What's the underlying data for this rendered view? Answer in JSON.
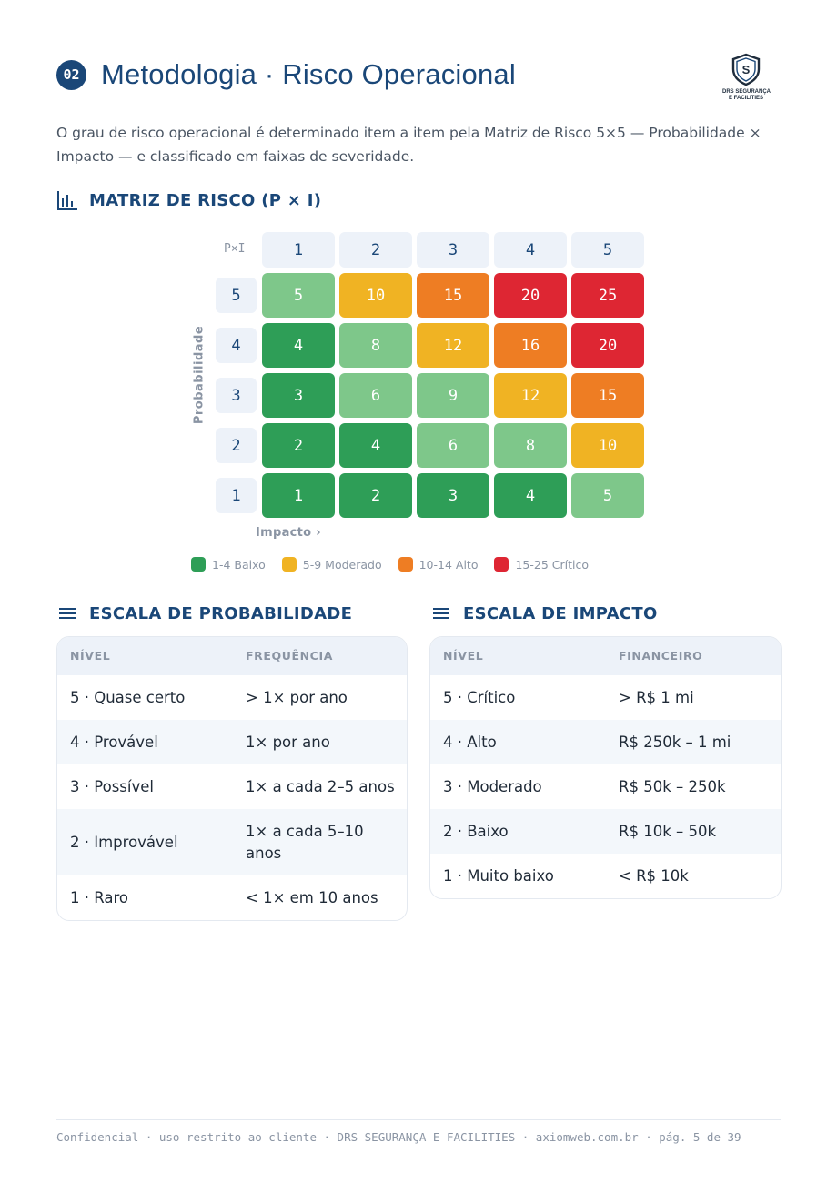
{
  "header": {
    "section_number": "02",
    "title": "Metodologia · Risco Operacional",
    "logo": {
      "name": "drs-shield-logo",
      "line1": "DRS SEGURANÇA",
      "line2": "E FACILITIES"
    }
  },
  "intro": "O grau de risco operacional é determinado item a item pela Matriz de Risco 5×5 — Probabilidade × Impacto — e classificado em faixas de severidade.",
  "matrix": {
    "heading": "MATRIZ DE RISCO (P × I)",
    "icon": "bar-chart-icon",
    "corner_label": "P×I",
    "column_headers": [
      "1",
      "2",
      "3",
      "4",
      "5"
    ],
    "row_headers": [
      "5",
      "4",
      "3",
      "2",
      "1"
    ],
    "rows": [
      [
        "5",
        "10",
        "15",
        "20",
        "25"
      ],
      [
        "4",
        "8",
        "12",
        "16",
        "20"
      ],
      [
        "3",
        "6",
        "9",
        "12",
        "15"
      ],
      [
        "2",
        "4",
        "6",
        "8",
        "10"
      ],
      [
        "1",
        "2",
        "3",
        "4",
        "5"
      ]
    ],
    "y_axis_label": "Probabilidade",
    "x_axis_label": "Impacto ›",
    "colors": {
      "baixo_dark": "#2e9e57",
      "baixo_light": "#7ec78a",
      "moderado": "#f0b323",
      "alto": "#ee7d23",
      "critico": "#de2633"
    },
    "legend": [
      {
        "label": "1-4 Baixo",
        "color": "#2e9e57"
      },
      {
        "label": "5-9 Moderado",
        "color": "#f0b323"
      },
      {
        "label": "10-14 Alto",
        "color": "#ee7d23"
      },
      {
        "label": "15-25 Crítico",
        "color": "#de2633"
      }
    ]
  },
  "probability_scale": {
    "heading": "ESCALA DE PROBABILIDADE",
    "icon": "menu-lines-icon",
    "columns": [
      "NÍVEL",
      "FREQUÊNCIA"
    ],
    "rows": [
      [
        "5 · Quase certo",
        "> 1× por ano"
      ],
      [
        "4 · Provável",
        "1× por ano"
      ],
      [
        "3 · Possível",
        "1× a cada 2–5 anos"
      ],
      [
        "2 · Improvável",
        "1× a cada 5–10 anos"
      ],
      [
        "1 · Raro",
        "< 1× em 10 anos"
      ]
    ]
  },
  "impact_scale": {
    "heading": "ESCALA DE IMPACTO",
    "icon": "menu-lines-icon",
    "columns": [
      "NÍVEL",
      "FINANCEIRO"
    ],
    "rows": [
      [
        "5 · Crítico",
        "> R$ 1 mi"
      ],
      [
        "4 · Alto",
        "R$ 250k – 1 mi"
      ],
      [
        "3 · Moderado",
        "R$ 50k – 250k"
      ],
      [
        "2 · Baixo",
        "R$ 10k – 50k"
      ],
      [
        "1 · Muito baixo",
        "< R$ 10k"
      ]
    ]
  },
  "footer": "Confidencial · uso restrito ao cliente · DRS SEGURANÇA E FACILITIES · axiomweb.com.br · pág. 5 de 39"
}
